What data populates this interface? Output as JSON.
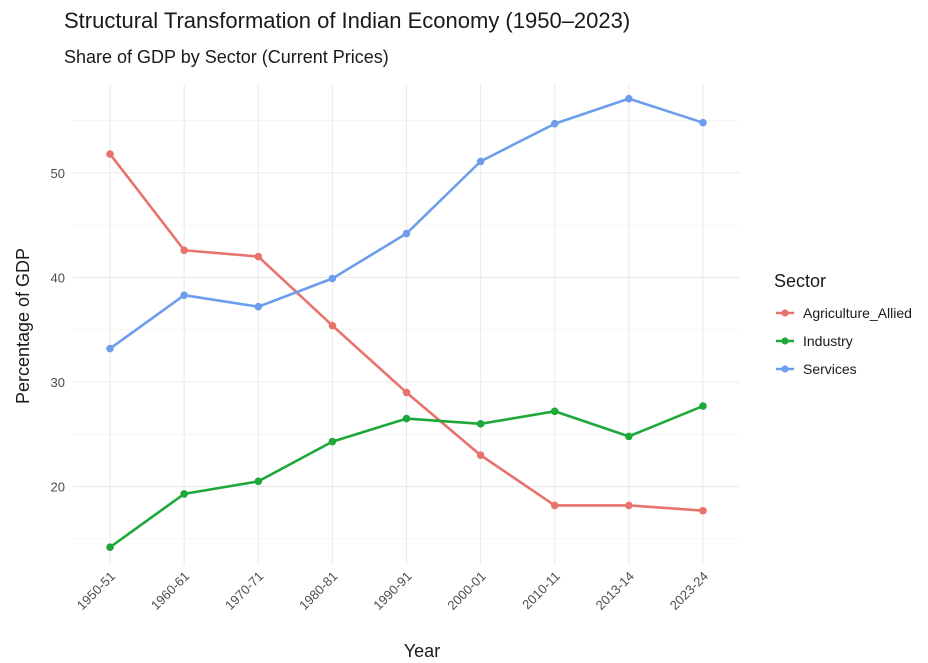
{
  "chart_data": {
    "type": "line",
    "title": "Structural Transformation of Indian Economy (1950–2023)",
    "subtitle": "Share of GDP by Sector (Current Prices)",
    "xlabel": "Year",
    "ylabel": "Percentage of GDP",
    "categories": [
      "1950-51",
      "1960-61",
      "1970-71",
      "1980-81",
      "1990-91",
      "2000-01",
      "2010-11",
      "2013-14",
      "2023-24"
    ],
    "yticks": [
      20,
      30,
      40,
      50
    ],
    "ylim": [
      12.5,
      58.5
    ],
    "grid": true,
    "legend": {
      "title": "Sector",
      "position": "right"
    },
    "series": [
      {
        "name": "Agriculture_Allied",
        "color": "#e8736c",
        "values": [
          51.8,
          42.6,
          42.0,
          35.4,
          29.0,
          23.0,
          18.2,
          18.2,
          17.7
        ]
      },
      {
        "name": "Industry",
        "color": "#1fa83a",
        "values": [
          14.2,
          19.3,
          20.5,
          24.3,
          26.5,
          26.0,
          27.2,
          24.8,
          27.7
        ]
      },
      {
        "name": "Services",
        "color": "#6d9eeb",
        "values": [
          33.2,
          38.3,
          37.2,
          39.9,
          44.2,
          51.1,
          54.7,
          57.1,
          54.8
        ]
      }
    ]
  }
}
